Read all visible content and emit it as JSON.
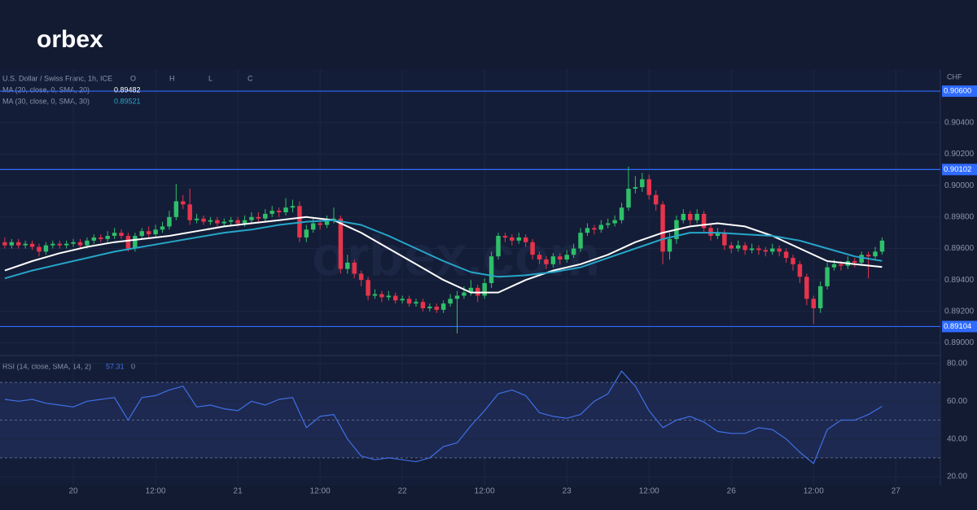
{
  "logo": "orbex",
  "chart_data": {
    "type": "candlestick",
    "title": "U.S. Dollar / Swiss Franc, 1h, ICE",
    "ohlc_labels": [
      "O",
      "H",
      "L",
      "C"
    ],
    "currency": "CHF",
    "watermark": "orbex.com",
    "up_color": "#2fbf6a",
    "down_color": "#e6344c",
    "xlim": [
      -10.7,
      126.5
    ],
    "xticks": [
      {
        "value": 0,
        "label": "20"
      },
      {
        "value": 12,
        "label": "12:00"
      },
      {
        "value": 24,
        "label": "21"
      },
      {
        "value": 36,
        "label": "12:00"
      },
      {
        "value": 48,
        "label": "22"
      },
      {
        "value": 60,
        "label": "12:00"
      },
      {
        "value": 72,
        "label": "23"
      },
      {
        "value": 84,
        "label": "12:00"
      },
      {
        "value": 96,
        "label": "26"
      },
      {
        "value": 108,
        "label": "12:00"
      },
      {
        "value": 120,
        "label": "27"
      }
    ],
    "ylim": [
      0.8892,
      0.9074
    ],
    "yticks": [
      {
        "value": 0.904,
        "label": "0.90400"
      },
      {
        "value": 0.902,
        "label": "0.90200"
      },
      {
        "value": 0.9,
        "label": "0.90000"
      },
      {
        "value": 0.898,
        "label": "0.89800"
      },
      {
        "value": 0.896,
        "label": "0.89600"
      },
      {
        "value": 0.894,
        "label": "0.89400"
      },
      {
        "value": 0.892,
        "label": "0.89200"
      },
      {
        "value": 0.89,
        "label": "0.89000"
      }
    ],
    "levels": [
      {
        "value": 0.906,
        "label": "0.90600"
      },
      0.90102,
      0.89104
    ],
    "level_color": "#2f6bff",
    "x": [
      -10,
      -9,
      -8,
      -7,
      -6,
      -5,
      -4,
      -3,
      -2,
      -1,
      0,
      1,
      2,
      3,
      4,
      5,
      6,
      7,
      8,
      9,
      10,
      11,
      12,
      13,
      14,
      15,
      16,
      17,
      18,
      19,
      20,
      21,
      22,
      23,
      24,
      25,
      26,
      27,
      28,
      29,
      30,
      31,
      32,
      33,
      34,
      35,
      36,
      37,
      38,
      39,
      40,
      41,
      42,
      43,
      44,
      45,
      46,
      47,
      48,
      49,
      50,
      51,
      52,
      53,
      54,
      55,
      56,
      57,
      58,
      59,
      60,
      61,
      62,
      63,
      64,
      65,
      66,
      67,
      68,
      69,
      70,
      71,
      72,
      73,
      74,
      75,
      76,
      77,
      78,
      79,
      80,
      81,
      82,
      83,
      84,
      85,
      86,
      87,
      88,
      89,
      90,
      91,
      92,
      93,
      94,
      95,
      96,
      97,
      98,
      99,
      100,
      101,
      102,
      103,
      104,
      105,
      106,
      107,
      108,
      109,
      110,
      111,
      112,
      113,
      114,
      115,
      116,
      117,
      118
    ],
    "ohlc": [
      [
        0.8964,
        0.8967,
        0.896,
        0.8962
      ],
      [
        0.8962,
        0.8966,
        0.896,
        0.8964
      ],
      [
        0.8964,
        0.8966,
        0.896,
        0.8962
      ],
      [
        0.8962,
        0.8965,
        0.896,
        0.8963
      ],
      [
        0.8963,
        0.8965,
        0.8959,
        0.8961
      ],
      [
        0.8961,
        0.8963,
        0.8955,
        0.8958
      ],
      [
        0.8958,
        0.8964,
        0.8956,
        0.8962
      ],
      [
        0.8962,
        0.8965,
        0.896,
        0.8963
      ],
      [
        0.8963,
        0.8965,
        0.896,
        0.8962
      ],
      [
        0.8962,
        0.8965,
        0.896,
        0.8963
      ],
      [
        0.8963,
        0.8966,
        0.8961,
        0.8964
      ],
      [
        0.8964,
        0.8966,
        0.896,
        0.8962
      ],
      [
        0.8962,
        0.8967,
        0.896,
        0.8965
      ],
      [
        0.8965,
        0.8969,
        0.8963,
        0.8967
      ],
      [
        0.8967,
        0.8969,
        0.8964,
        0.8966
      ],
      [
        0.8966,
        0.8971,
        0.8964,
        0.8968
      ],
      [
        0.8968,
        0.8973,
        0.8966,
        0.897
      ],
      [
        0.897,
        0.8972,
        0.8966,
        0.8968
      ],
      [
        0.8968,
        0.897,
        0.8958,
        0.896
      ],
      [
        0.896,
        0.897,
        0.8958,
        0.8968
      ],
      [
        0.8968,
        0.8973,
        0.8966,
        0.8971
      ],
      [
        0.8971,
        0.8974,
        0.8967,
        0.8969
      ],
      [
        0.8969,
        0.8975,
        0.8967,
        0.8972
      ],
      [
        0.8972,
        0.8977,
        0.897,
        0.8974
      ],
      [
        0.8974,
        0.8984,
        0.8972,
        0.898
      ],
      [
        0.898,
        0.9001,
        0.8978,
        0.899
      ],
      [
        0.899,
        0.8994,
        0.8985,
        0.8988
      ],
      [
        0.8988,
        0.8998,
        0.8975,
        0.8978
      ],
      [
        0.8978,
        0.8982,
        0.8976,
        0.8979
      ],
      [
        0.8979,
        0.8981,
        0.8975,
        0.8977
      ],
      [
        0.8977,
        0.898,
        0.8975,
        0.8978
      ],
      [
        0.8978,
        0.898,
        0.8974,
        0.8976
      ],
      [
        0.8976,
        0.8979,
        0.8974,
        0.8977
      ],
      [
        0.8977,
        0.898,
        0.8975,
        0.8978
      ],
      [
        0.8978,
        0.898,
        0.8974,
        0.8976
      ],
      [
        0.8976,
        0.8981,
        0.8974,
        0.8978
      ],
      [
        0.8978,
        0.8983,
        0.8976,
        0.898
      ],
      [
        0.898,
        0.8983,
        0.8977,
        0.8979
      ],
      [
        0.8979,
        0.8985,
        0.8977,
        0.8982
      ],
      [
        0.8982,
        0.8987,
        0.898,
        0.8984
      ],
      [
        0.8984,
        0.8986,
        0.898,
        0.8983
      ],
      [
        0.8983,
        0.8992,
        0.8981,
        0.8986
      ],
      [
        0.8986,
        0.8991,
        0.8983,
        0.8987
      ],
      [
        0.8987,
        0.899,
        0.8964,
        0.8967
      ],
      [
        0.8967,
        0.8975,
        0.8964,
        0.8972
      ],
      [
        0.8972,
        0.8979,
        0.897,
        0.8976
      ],
      [
        0.8976,
        0.8979,
        0.8972,
        0.8975
      ],
      [
        0.8975,
        0.8981,
        0.8973,
        0.8978
      ],
      [
        0.8978,
        0.8986,
        0.8976,
        0.8979
      ],
      [
        0.8979,
        0.8981,
        0.8944,
        0.8947
      ],
      [
        0.8947,
        0.8956,
        0.8944,
        0.8951
      ],
      [
        0.8951,
        0.8953,
        0.8941,
        0.8944
      ],
      [
        0.8944,
        0.8946,
        0.8936,
        0.894
      ],
      [
        0.894,
        0.8942,
        0.8927,
        0.893
      ],
      [
        0.893,
        0.8934,
        0.8928,
        0.8931
      ],
      [
        0.8931,
        0.8933,
        0.8926,
        0.8929
      ],
      [
        0.8929,
        0.8933,
        0.8927,
        0.893
      ],
      [
        0.893,
        0.8932,
        0.8925,
        0.8927
      ],
      [
        0.8927,
        0.893,
        0.8925,
        0.8928
      ],
      [
        0.8928,
        0.893,
        0.8923,
        0.8925
      ],
      [
        0.8925,
        0.8928,
        0.8923,
        0.8926
      ],
      [
        0.8926,
        0.8928,
        0.892,
        0.8922
      ],
      [
        0.8922,
        0.8925,
        0.892,
        0.8923
      ],
      [
        0.8923,
        0.8925,
        0.8919,
        0.8921
      ],
      [
        0.8921,
        0.8927,
        0.8919,
        0.8925
      ],
      [
        0.8925,
        0.8931,
        0.8923,
        0.8928
      ],
      [
        0.8928,
        0.8933,
        0.8906,
        0.893
      ],
      [
        0.893,
        0.8936,
        0.8928,
        0.8932
      ],
      [
        0.8932,
        0.894,
        0.893,
        0.8935
      ],
      [
        0.8935,
        0.8937,
        0.8926,
        0.893
      ],
      [
        0.893,
        0.8941,
        0.8928,
        0.8938
      ],
      [
        0.8938,
        0.8958,
        0.8935,
        0.8955
      ],
      [
        0.8955,
        0.897,
        0.8953,
        0.8968
      ],
      [
        0.8968,
        0.897,
        0.8964,
        0.8967
      ],
      [
        0.8967,
        0.8969,
        0.8962,
        0.8965
      ],
      [
        0.8965,
        0.897,
        0.8963,
        0.8967
      ],
      [
        0.8967,
        0.8969,
        0.8961,
        0.8964
      ],
      [
        0.8964,
        0.8966,
        0.8953,
        0.8956
      ],
      [
        0.8956,
        0.8958,
        0.895,
        0.8953
      ],
      [
        0.8953,
        0.8955,
        0.8947,
        0.895
      ],
      [
        0.895,
        0.8957,
        0.8948,
        0.8955
      ],
      [
        0.8955,
        0.8957,
        0.895,
        0.8953
      ],
      [
        0.8953,
        0.8959,
        0.8951,
        0.8956
      ],
      [
        0.8956,
        0.8963,
        0.8954,
        0.896
      ],
      [
        0.896,
        0.8973,
        0.8958,
        0.897
      ],
      [
        0.897,
        0.8976,
        0.8968,
        0.8973
      ],
      [
        0.8973,
        0.8975,
        0.8969,
        0.8972
      ],
      [
        0.8972,
        0.8978,
        0.897,
        0.8975
      ],
      [
        0.8975,
        0.8979,
        0.8973,
        0.8976
      ],
      [
        0.8976,
        0.8981,
        0.8974,
        0.8978
      ],
      [
        0.8978,
        0.8989,
        0.8976,
        0.8986
      ],
      [
        0.8986,
        0.9012,
        0.8984,
        0.8998
      ],
      [
        0.8998,
        0.9006,
        0.8995,
        0.8999
      ],
      [
        0.8999,
        0.9008,
        0.8996,
        0.9004
      ],
      [
        0.9004,
        0.9007,
        0.8991,
        0.8994
      ],
      [
        0.8994,
        0.8997,
        0.8984,
        0.8988
      ],
      [
        0.8988,
        0.899,
        0.895,
        0.8958
      ],
      [
        0.8958,
        0.897,
        0.8953,
        0.8966
      ],
      [
        0.8966,
        0.8981,
        0.8963,
        0.8978
      ],
      [
        0.8978,
        0.8985,
        0.8976,
        0.8982
      ],
      [
        0.8982,
        0.8984,
        0.8975,
        0.8978
      ],
      [
        0.8978,
        0.8985,
        0.8976,
        0.8982
      ],
      [
        0.8982,
        0.8984,
        0.897,
        0.8973
      ],
      [
        0.8973,
        0.8975,
        0.8965,
        0.8968
      ],
      [
        0.8968,
        0.8973,
        0.8966,
        0.897
      ],
      [
        0.897,
        0.8972,
        0.8959,
        0.8962
      ],
      [
        0.8962,
        0.8964,
        0.8957,
        0.896
      ],
      [
        0.896,
        0.8965,
        0.8958,
        0.8962
      ],
      [
        0.8962,
        0.8964,
        0.8956,
        0.8959
      ],
      [
        0.8959,
        0.8963,
        0.8957,
        0.896
      ],
      [
        0.896,
        0.8962,
        0.8956,
        0.8959
      ],
      [
        0.8959,
        0.8961,
        0.8955,
        0.8958
      ],
      [
        0.8958,
        0.8963,
        0.8956,
        0.896
      ],
      [
        0.896,
        0.8962,
        0.8955,
        0.8958
      ],
      [
        0.8958,
        0.896,
        0.8951,
        0.8954
      ],
      [
        0.8954,
        0.8956,
        0.8946,
        0.895
      ],
      [
        0.895,
        0.8952,
        0.8938,
        0.8942
      ],
      [
        0.8942,
        0.8944,
        0.8924,
        0.8928
      ],
      [
        0.8928,
        0.893,
        0.8912,
        0.8922
      ],
      [
        0.8922,
        0.8939,
        0.8919,
        0.8936
      ],
      [
        0.8936,
        0.8951,
        0.8934,
        0.8948
      ],
      [
        0.8948,
        0.8953,
        0.8946,
        0.895
      ],
      [
        0.895,
        0.8952,
        0.8946,
        0.8949
      ],
      [
        0.8949,
        0.8955,
        0.8947,
        0.8952
      ],
      [
        0.8952,
        0.8954,
        0.8948,
        0.8951
      ],
      [
        0.8951,
        0.8958,
        0.8949,
        0.8956
      ],
      [
        0.8956,
        0.8958,
        0.8941,
        0.8955
      ],
      [
        0.8955,
        0.8961,
        0.8953,
        0.8958
      ],
      [
        0.8958,
        0.8967,
        0.8956,
        0.8965
      ]
    ],
    "ma": [
      {
        "name": "MA (20, close, 0, SMA, 20)",
        "color": "#ffffff",
        "x": [
          -10,
          -6,
          -2,
          2,
          6,
          10,
          14,
          18,
          22,
          26,
          30,
          34,
          38,
          42,
          46,
          50,
          54,
          58,
          62,
          66,
          70,
          74,
          78,
          82,
          86,
          90,
          94,
          98,
          102,
          106,
          110,
          114,
          118
        ],
        "values": [
          0.8946,
          0.8952,
          0.8957,
          0.8961,
          0.8964,
          0.8966,
          0.8968,
          0.8971,
          0.8974,
          0.8976,
          0.8978,
          0.898,
          0.8978,
          0.897,
          0.896,
          0.895,
          0.894,
          0.8932,
          0.8932,
          0.894,
          0.8946,
          0.895,
          0.8956,
          0.8964,
          0.897,
          0.8974,
          0.8976,
          0.8974,
          0.8968,
          0.896,
          0.8952,
          0.895,
          0.89482
        ]
      },
      {
        "name": "MA (30, close, 0, SMA, 30)",
        "color": "#26a6c9",
        "x": [
          -10,
          -6,
          -2,
          2,
          6,
          10,
          14,
          18,
          22,
          26,
          30,
          34,
          38,
          42,
          46,
          50,
          54,
          58,
          62,
          66,
          70,
          74,
          78,
          82,
          86,
          90,
          94,
          98,
          102,
          106,
          110,
          114,
          118
        ],
        "values": [
          0.8941,
          0.8946,
          0.895,
          0.8954,
          0.8958,
          0.8961,
          0.8964,
          0.8967,
          0.897,
          0.8972,
          0.8975,
          0.8977,
          0.8978,
          0.8975,
          0.8968,
          0.896,
          0.8952,
          0.8945,
          0.8942,
          0.8943,
          0.8945,
          0.8948,
          0.8954,
          0.896,
          0.8966,
          0.897,
          0.897,
          0.8969,
          0.8968,
          0.8965,
          0.896,
          0.8955,
          0.89521
        ]
      }
    ],
    "rsi": {
      "name": "RSI (14, close, SMA, 14, 2)",
      "signal_label": "0",
      "color": "#3f6fe6",
      "ylim": [
        15.3,
        84.3
      ],
      "yticks": [
        {
          "value": 80,
          "label": "80.00"
        },
        {
          "value": 60,
          "label": "60.00"
        },
        {
          "value": 40,
          "label": "40.00"
        },
        {
          "value": 20,
          "label": "20.00"
        }
      ],
      "bands": [
        70,
        50,
        30
      ],
      "x": [
        -10,
        -8,
        -6,
        -4,
        -2,
        0,
        2,
        4,
        6,
        8,
        10,
        12,
        14,
        16,
        18,
        20,
        22,
        24,
        26,
        28,
        30,
        32,
        34,
        36,
        38,
        40,
        42,
        44,
        46,
        48,
        50,
        52,
        54,
        56,
        58,
        60,
        62,
        64,
        66,
        68,
        70,
        72,
        74,
        76,
        78,
        80,
        82,
        84,
        86,
        88,
        90,
        92,
        94,
        96,
        98,
        100,
        102,
        104,
        106,
        108,
        110,
        112,
        114,
        116,
        118
      ],
      "values": [
        61,
        60,
        61,
        59,
        58,
        57,
        60,
        61,
        62,
        50,
        62,
        63,
        66,
        68,
        57,
        58,
        56,
        55,
        60,
        58,
        61,
        62,
        46,
        52,
        53,
        40,
        31,
        29,
        30,
        29,
        28,
        30,
        36,
        38,
        47,
        55,
        64,
        66,
        63,
        54,
        52,
        51,
        53,
        60,
        64,
        76,
        68,
        55,
        46,
        50,
        52,
        49,
        44,
        43,
        43,
        46,
        45,
        40,
        33,
        27,
        45,
        50,
        50,
        53,
        57.31
      ]
    }
  }
}
